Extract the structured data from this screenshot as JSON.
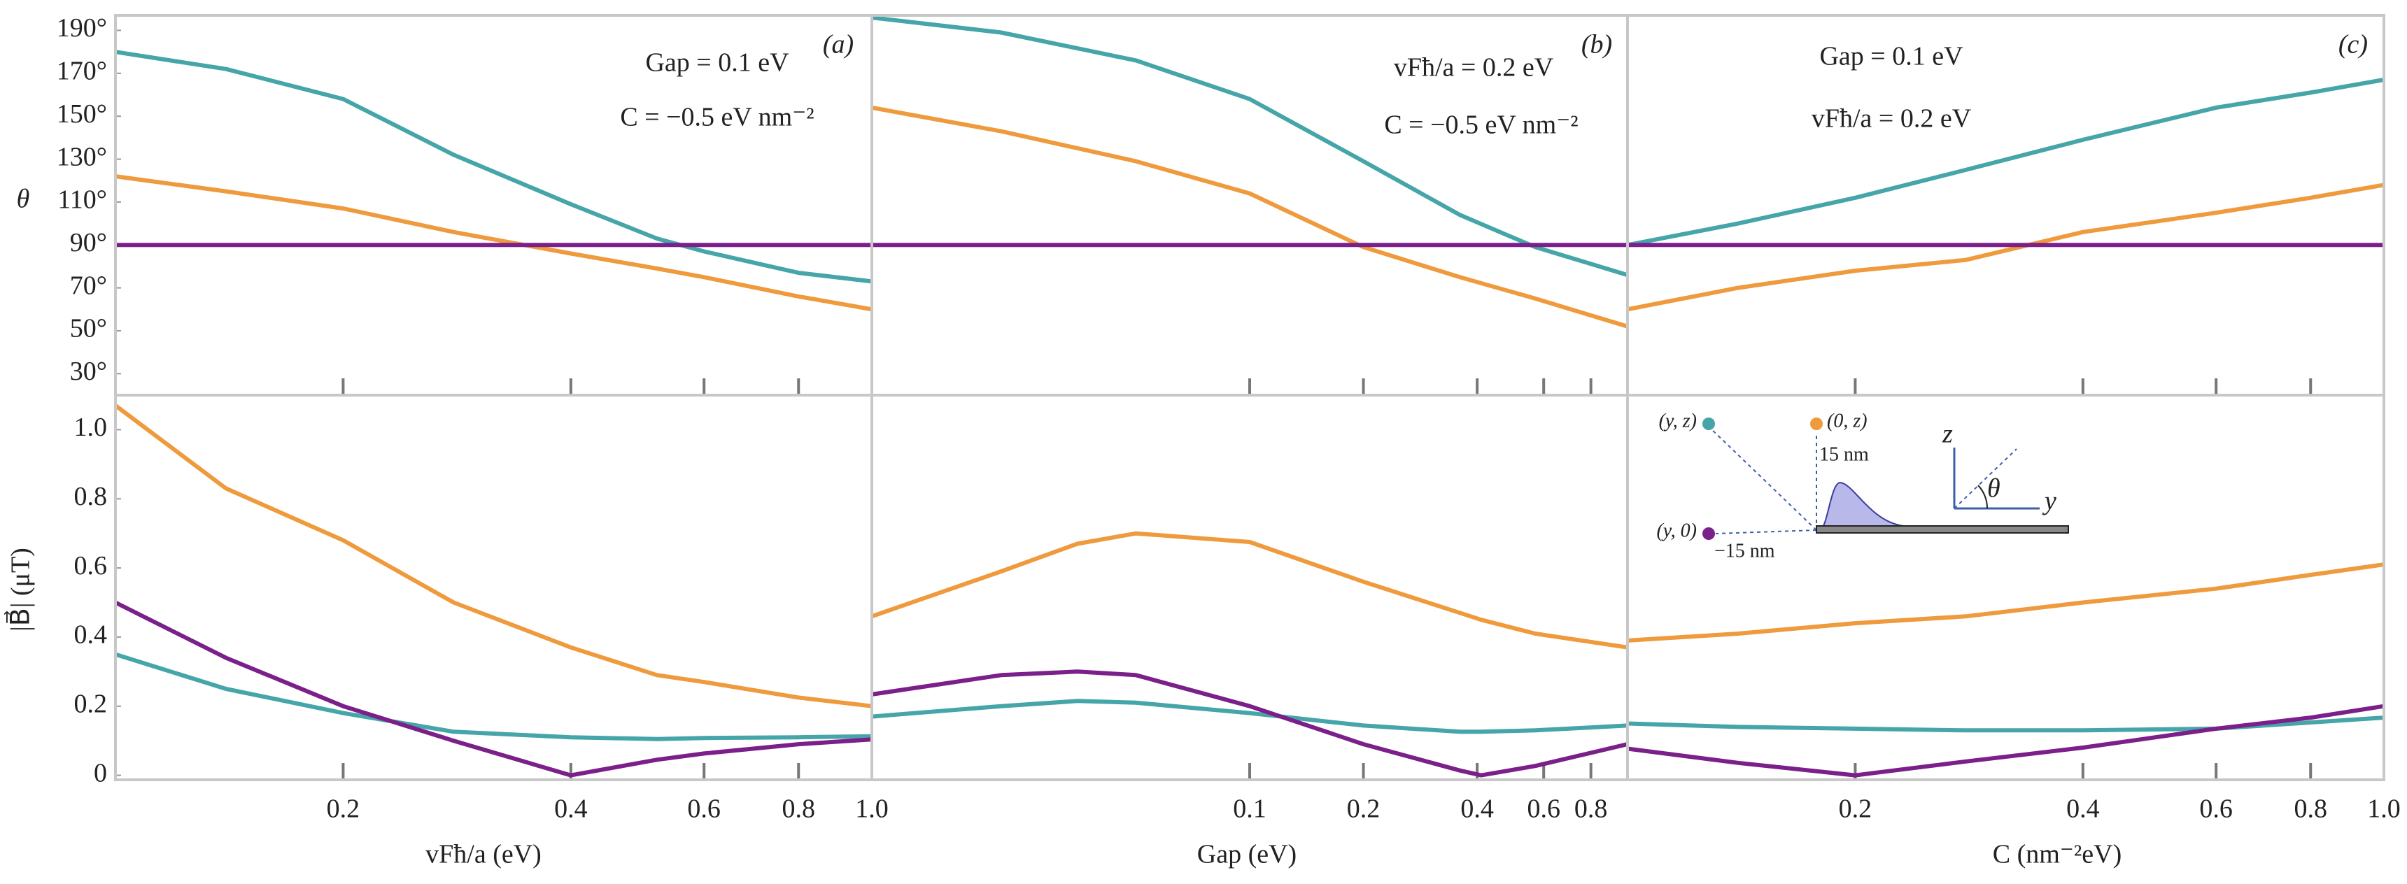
{
  "chart_data": [
    {
      "type": "line",
      "xlog": true,
      "panel_label": "(a)",
      "ylabel": "θ",
      "annotations": [
        "Gap = 0.1 eV",
        "C = −0.5 eV nm⁻²"
      ],
      "x": [
        0.1,
        0.14,
        0.2,
        0.28,
        0.4,
        0.52,
        0.6,
        0.8,
        1.0
      ],
      "xlim": [
        0.1,
        1.0
      ],
      "ylim": [
        20,
        197
      ],
      "yticks": [
        {
          "value": 30,
          "label": "30°"
        },
        {
          "value": 50,
          "label": "50°"
        },
        {
          "value": 70,
          "label": "70°"
        },
        {
          "value": 90,
          "label": "90°"
        },
        {
          "value": 110,
          "label": "110°"
        },
        {
          "value": 130,
          "label": "130°"
        },
        {
          "value": 150,
          "label": "150°"
        },
        {
          "value": 170,
          "label": "170°"
        },
        {
          "value": 190,
          "label": "190°"
        }
      ],
      "series": [
        {
          "color": "#45a5a8",
          "values": [
            180,
            172,
            158,
            132,
            109,
            93,
            87,
            77,
            73
          ]
        },
        {
          "color": "#ef9a3c",
          "values": [
            122,
            115,
            107,
            96,
            86,
            79,
            75,
            66,
            60
          ]
        },
        {
          "color": "#7b1f8a",
          "values": [
            90,
            90,
            90,
            90,
            90,
            90,
            90,
            90,
            90
          ]
        }
      ]
    },
    {
      "type": "line",
      "xlog": true,
      "panel_label": "(b)",
      "annotations": [
        "vFħ/a = 0.2 eV",
        "C = −0.5 eV nm⁻²"
      ],
      "x": [
        0.01,
        0.022,
        0.05,
        0.1,
        0.2,
        0.36,
        0.57,
        1.0
      ],
      "xlim": [
        0.01,
        1.0
      ],
      "ylim": [
        20,
        197
      ],
      "series": [
        {
          "color": "#45a5a8",
          "values": [
            196,
            189,
            176,
            158,
            129,
            104,
            89,
            76
          ]
        },
        {
          "color": "#ef9a3c",
          "values": [
            154,
            143,
            129,
            114,
            89,
            75,
            65,
            52
          ]
        },
        {
          "color": "#7b1f8a",
          "values": [
            90,
            90,
            90,
            90,
            90,
            90,
            90,
            90
          ]
        }
      ]
    },
    {
      "type": "line",
      "xlog": true,
      "panel_label": "(c)",
      "annotations": [
        "Gap = 0.1 eV",
        "vFħ/a = 0.2 eV"
      ],
      "x": [
        0.1,
        0.14,
        0.2,
        0.28,
        0.4,
        0.6,
        0.8,
        1.0
      ],
      "xlim": [
        0.1,
        1.0
      ],
      "ylim": [
        20,
        197
      ],
      "series": [
        {
          "color": "#45a5a8",
          "values": [
            90,
            100,
            112,
            125,
            139,
            154,
            161,
            167
          ]
        },
        {
          "color": "#ef9a3c",
          "values": [
            60,
            70,
            78,
            83,
            96,
            105,
            112,
            118
          ]
        },
        {
          "color": "#7b1f8a",
          "values": [
            90,
            90,
            90,
            90,
            90,
            90,
            90,
            90
          ]
        }
      ]
    },
    {
      "type": "line",
      "xlog": true,
      "ylabel": "|B⃗| (μT)",
      "xlabel": "vFħ/a (eV)",
      "x": [
        0.1,
        0.14,
        0.2,
        0.28,
        0.4,
        0.52,
        0.6,
        0.8,
        1.0
      ],
      "xlim": [
        0.1,
        1.0
      ],
      "ylim": [
        -0.013,
        1.1
      ],
      "xticks": [
        0.2,
        0.4,
        0.6,
        0.8,
        {
          "value": 1.0,
          "label": "1.0"
        }
      ],
      "yticks": [
        0,
        0.2,
        0.4,
        0.6,
        0.8,
        {
          "value": 1.0,
          "label": "1.0"
        }
      ],
      "series": [
        {
          "color": "#ef9a3c",
          "values": [
            1.07,
            0.83,
            0.68,
            0.5,
            0.37,
            0.29,
            0.27,
            0.225,
            0.2
          ]
        },
        {
          "color": "#45a5a8",
          "values": [
            0.35,
            0.25,
            0.18,
            0.126,
            0.11,
            0.105,
            0.108,
            0.11,
            0.113
          ]
        },
        {
          "color": "#7b1f8a",
          "values": [
            0.5,
            0.34,
            0.2,
            0.1,
            0,
            0.045,
            0.063,
            0.09,
            0.104
          ]
        }
      ]
    },
    {
      "type": "line",
      "xlog": true,
      "xlabel": "Gap (eV)",
      "x": [
        0.01,
        0.022,
        0.035,
        0.05,
        0.1,
        0.2,
        0.36,
        0.41,
        0.57,
        1.0
      ],
      "xlim": [
        0.01,
        1.0
      ],
      "ylim": [
        -0.013,
        1.1
      ],
      "xticks": [
        0.1,
        0.2,
        0.4,
        0.6,
        0.8
      ],
      "series": [
        {
          "color": "#ef9a3c",
          "values": [
            0.46,
            0.59,
            0.67,
            0.7,
            0.675,
            0.56,
            0.47,
            0.45,
            0.41,
            0.37
          ]
        },
        {
          "color": "#45a5a8",
          "values": [
            0.17,
            0.2,
            0.215,
            0.21,
            0.18,
            0.144,
            0.126,
            0.126,
            0.13,
            0.144
          ]
        },
        {
          "color": "#7b1f8a",
          "values": [
            0.234,
            0.29,
            0.3,
            0.29,
            0.2,
            0.09,
            0.014,
            0,
            0.027,
            0.09
          ]
        }
      ]
    },
    {
      "type": "line",
      "xlog": true,
      "xlabel": "C (nm⁻²eV)",
      "x": [
        0.1,
        0.14,
        0.2,
        0.28,
        0.4,
        0.6,
        0.8,
        1.0
      ],
      "xlim": [
        0.1,
        1.0
      ],
      "ylim": [
        -0.013,
        1.1
      ],
      "xticks": [
        0.2,
        0.4,
        0.6,
        0.8,
        {
          "value": 1.0,
          "label": "1.0"
        }
      ],
      "series": [
        {
          "color": "#ef9a3c",
          "values": [
            0.39,
            0.41,
            0.44,
            0.46,
            0.5,
            0.54,
            0.58,
            0.61
          ]
        },
        {
          "color": "#45a5a8",
          "values": [
            0.15,
            0.14,
            0.135,
            0.13,
            0.13,
            0.135,
            0.153,
            0.167
          ]
        },
        {
          "color": "#7b1f8a",
          "values": [
            0.077,
            0.036,
            0,
            0.04,
            0.08,
            0.135,
            0.167,
            0.2
          ]
        }
      ]
    }
  ],
  "inset": {
    "point_yz": "(y, z)",
    "point_0z": "(0, z)",
    "height": "15 nm",
    "point_y0": "(y, 0)",
    "depth": "−15 nm",
    "z_axis": "z",
    "y_axis": "y",
    "angle": "θ"
  }
}
